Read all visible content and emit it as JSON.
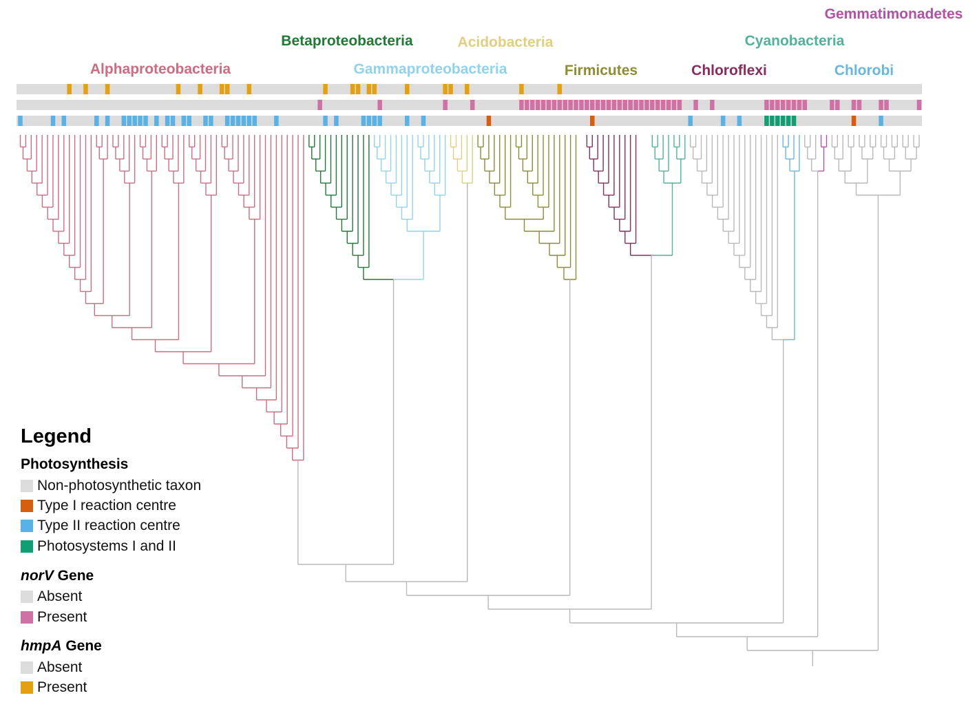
{
  "colors": {
    "Alphaproteobacteria": "#cf6b7f",
    "Betaproteobacteria": "#1e7a35",
    "Gammaproteobacteria": "#8fd3ec",
    "Acidobacteria": "#e2cf7d",
    "Firmicutes": "#8c8c32",
    "Chloroflexi": "#8a2b5e",
    "Cyanobacteria": "#4fb39a",
    "Chlorobi": "#65b7e5",
    "Gemmatimonadetes": "#b64fa6",
    "other": "#b8b8b8",
    "absent": "#dcdcdc",
    "typeI": "#d35f0f",
    "typeII": "#59b2e6",
    "psIandII": "#109e72",
    "norV": "#d071a6",
    "hmpA": "#e5a00d"
  },
  "clades": [
    {
      "name": "Alphaproteobacteria",
      "key": "Alphaproteobacteria"
    },
    {
      "name": "Betaproteobacteria",
      "key": "Betaproteobacteria"
    },
    {
      "name": "Gammaproteobacteria",
      "key": "Gammaproteobacteria"
    },
    {
      "name": "Acidobacteria",
      "key": "Acidobacteria"
    },
    {
      "name": "Firmicutes",
      "key": "Firmicutes"
    },
    {
      "name": "Chloroflexi",
      "key": "Chloroflexi"
    },
    {
      "name": "Cyanobacteria",
      "key": "Cyanobacteria"
    },
    {
      "name": "Chlorobi",
      "key": "Chlorobi"
    },
    {
      "name": "Gemmatimonadetes",
      "key": "Gemmatimonadetes"
    }
  ],
  "tracks": {
    "hmpA_present_taxa": [
      9,
      12,
      16,
      29,
      33,
      37,
      38,
      42,
      56,
      61,
      62,
      64,
      65,
      71,
      78,
      79,
      82,
      92,
      99
    ],
    "norV_present_taxa": [
      55,
      66,
      78,
      83,
      92,
      93,
      94,
      95,
      96,
      97,
      98,
      99,
      100,
      101,
      102,
      103,
      104,
      105,
      106,
      107,
      108,
      109,
      110,
      111,
      112,
      113,
      114,
      115,
      116,
      117,
      118,
      119,
      120,
      121,
      124,
      127,
      137,
      138,
      139,
      140,
      141,
      142,
      143,
      144,
      149,
      150,
      153,
      154,
      158,
      159,
      165
    ],
    "photosynthesis": [
      {
        "taxon": 0,
        "type": "II"
      },
      {
        "taxon": 6,
        "type": "II"
      },
      {
        "taxon": 8,
        "type": "II"
      },
      {
        "taxon": 14,
        "type": "II"
      },
      {
        "taxon": 16,
        "type": "II"
      },
      {
        "taxon": 19,
        "type": "II"
      },
      {
        "taxon": 20,
        "type": "II"
      },
      {
        "taxon": 21,
        "type": "II"
      },
      {
        "taxon": 22,
        "type": "II"
      },
      {
        "taxon": 23,
        "type": "II"
      },
      {
        "taxon": 25,
        "type": "II"
      },
      {
        "taxon": 27,
        "type": "II"
      },
      {
        "taxon": 28,
        "type": "II"
      },
      {
        "taxon": 30,
        "type": "II"
      },
      {
        "taxon": 31,
        "type": "II"
      },
      {
        "taxon": 34,
        "type": "II"
      },
      {
        "taxon": 35,
        "type": "II"
      },
      {
        "taxon": 38,
        "type": "II"
      },
      {
        "taxon": 39,
        "type": "II"
      },
      {
        "taxon": 40,
        "type": "II"
      },
      {
        "taxon": 41,
        "type": "II"
      },
      {
        "taxon": 42,
        "type": "II"
      },
      {
        "taxon": 43,
        "type": "II"
      },
      {
        "taxon": 47,
        "type": "II"
      },
      {
        "taxon": 56,
        "type": "II"
      },
      {
        "taxon": 58,
        "type": "II"
      },
      {
        "taxon": 63,
        "type": "II"
      },
      {
        "taxon": 64,
        "type": "II"
      },
      {
        "taxon": 65,
        "type": "II"
      },
      {
        "taxon": 66,
        "type": "II"
      },
      {
        "taxon": 71,
        "type": "II"
      },
      {
        "taxon": 74,
        "type": "II"
      },
      {
        "taxon": 86,
        "type": "I"
      },
      {
        "taxon": 105,
        "type": "I"
      },
      {
        "taxon": 123,
        "type": "II"
      },
      {
        "taxon": 129,
        "type": "II"
      },
      {
        "taxon": 132,
        "type": "II"
      },
      {
        "taxon": 137,
        "type": "PSIandII"
      },
      {
        "taxon": 138,
        "type": "PSIandII"
      },
      {
        "taxon": 139,
        "type": "PSIandII"
      },
      {
        "taxon": 140,
        "type": "PSIandII"
      },
      {
        "taxon": 141,
        "type": "PSIandII"
      },
      {
        "taxon": 142,
        "type": "PSIandII"
      },
      {
        "taxon": 153,
        "type": "I"
      },
      {
        "taxon": 158,
        "type": "II"
      }
    ]
  },
  "legend": {
    "title": "Legend",
    "photosynthesis": {
      "heading": "Photosynthesis",
      "items": [
        {
          "label": "Non-photosynthetic taxon",
          "color": "#dcdcdc"
        },
        {
          "label": "Type I reaction centre",
          "color": "#d35f0f"
        },
        {
          "label": "Type II reaction centre",
          "color": "#59b2e6"
        },
        {
          "label": "Photosystems I and II",
          "color": "#109e72"
        }
      ]
    },
    "norV": {
      "gene": "norV",
      "suffix": " Gene",
      "items": [
        {
          "label": "Absent",
          "color": "#dcdcdc"
        },
        {
          "label": "Present",
          "color": "#d071a6"
        }
      ]
    },
    "hmpA": {
      "gene": "hmpA",
      "suffix": " Gene",
      "items": [
        {
          "label": "Absent",
          "color": "#dcdcdc"
        },
        {
          "label": "Present",
          "color": "#e5a00d"
        }
      ]
    }
  }
}
